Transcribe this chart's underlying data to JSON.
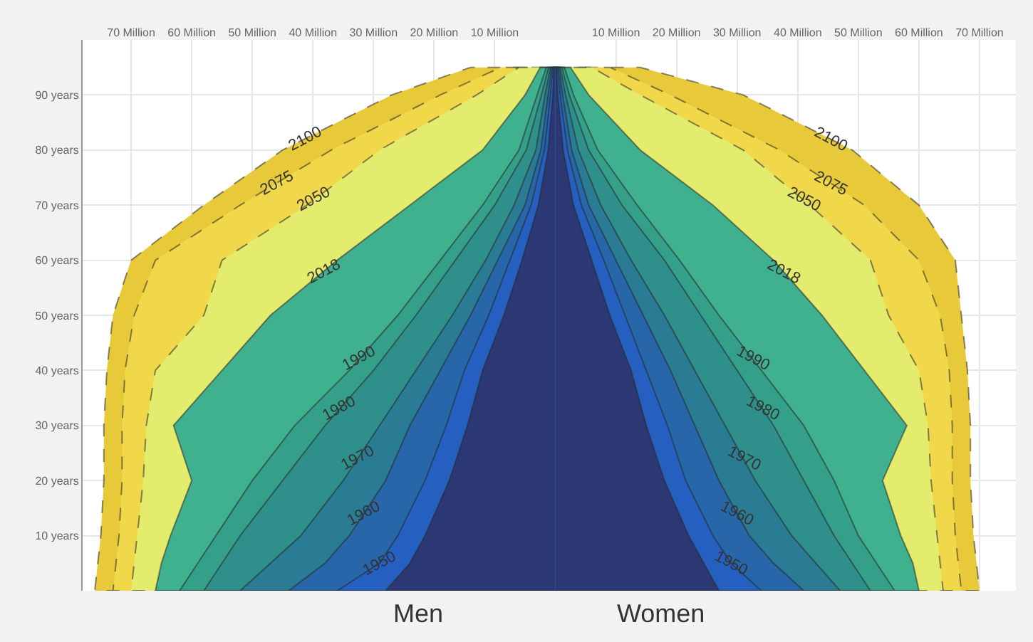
{
  "chart_data": {
    "type": "area",
    "orientation": "horizontal",
    "grid": true,
    "xlim": [
      -78,
      76
    ],
    "xticks": [
      {
        "value": -70,
        "label": "70 Million"
      },
      {
        "value": -60,
        "label": "60 Million"
      },
      {
        "value": -50,
        "label": "50 Million"
      },
      {
        "value": -40,
        "label": "40 Million"
      },
      {
        "value": -30,
        "label": "30 Million"
      },
      {
        "value": -20,
        "label": "20 Million"
      },
      {
        "value": -10,
        "label": "10 Million"
      },
      {
        "value": 10,
        "label": "10 Million"
      },
      {
        "value": 20,
        "label": "20 Million"
      },
      {
        "value": 30,
        "label": "30 Million"
      },
      {
        "value": 40,
        "label": "40 Million"
      },
      {
        "value": 50,
        "label": "50 Million"
      },
      {
        "value": 60,
        "label": "60 Million"
      },
      {
        "value": 70,
        "label": "70 Million"
      }
    ],
    "ylim": [
      0,
      100
    ],
    "yticks": [
      {
        "value": 10,
        "label": "10 years"
      },
      {
        "value": 20,
        "label": "20 years"
      },
      {
        "value": 30,
        "label": "30 years"
      },
      {
        "value": 40,
        "label": "40 years"
      },
      {
        "value": 50,
        "label": "50 years"
      },
      {
        "value": 60,
        "label": "60 years"
      },
      {
        "value": 70,
        "label": "70 years"
      },
      {
        "value": 80,
        "label": "80 years"
      },
      {
        "value": 90,
        "label": "90 years"
      }
    ],
    "annotations": [
      "Men",
      "Women"
    ],
    "series": [
      {
        "name": "2100",
        "color": "#e8c93a",
        "line_style": "dashed",
        "x": [
          0,
          5,
          10,
          20,
          30,
          40,
          50,
          60,
          70,
          80,
          90,
          95
        ],
        "values": [
          -76,
          -75.5,
          -75,
          -74.5,
          -74.5,
          -74,
          -73,
          -70,
          -58,
          -45,
          -27,
          -14
        ]
      },
      {
        "name": "2075",
        "color": "#f0d84a",
        "line_style": "dashed",
        "x": [
          0,
          5,
          10,
          20,
          30,
          40,
          50,
          60,
          70,
          80,
          90,
          95
        ],
        "values": [
          -73,
          -72.5,
          -72,
          -71.5,
          -71.5,
          -71,
          -69.5,
          -66,
          -52,
          -37,
          -19,
          -9
        ]
      },
      {
        "name": "2050",
        "color": "#e3ec6c",
        "line_style": "dashed",
        "x": [
          0,
          5,
          10,
          20,
          30,
          40,
          50,
          60,
          70,
          80,
          90,
          95
        ],
        "values": [
          -70,
          -69.5,
          -69,
          -68,
          -67.5,
          -66,
          -58,
          -55,
          -41,
          -29,
          -13,
          -6
        ]
      },
      {
        "name": "2018",
        "color": "#3fb18f",
        "line_style": "solid",
        "x": [
          0,
          5,
          10,
          20,
          30,
          40,
          50,
          60,
          70,
          80,
          90,
          95
        ],
        "values": [
          -66,
          -65,
          -63.5,
          -60,
          -63,
          -55,
          -47,
          -36,
          -24,
          -12,
          -5,
          -2.5
        ]
      },
      {
        "name": "1990",
        "color": "#34a08a",
        "line_style": "solid",
        "x": [
          0,
          5,
          10,
          20,
          30,
          40,
          50,
          60,
          70,
          80,
          90,
          95
        ],
        "values": [
          -62,
          -59,
          -56,
          -50,
          -43,
          -34,
          -26,
          -19,
          -12,
          -6,
          -3,
          -1.5
        ]
      },
      {
        "name": "1980",
        "color": "#2e8f8b",
        "line_style": "solid",
        "x": [
          0,
          5,
          10,
          20,
          30,
          40,
          50,
          60,
          70,
          80,
          90,
          95
        ],
        "values": [
          -58,
          -55,
          -52,
          -45,
          -38,
          -30,
          -23,
          -16.5,
          -10,
          -4.8,
          -2.3,
          -1.1
        ]
      },
      {
        "name": "1970",
        "color": "#2a7b94",
        "line_style": "solid",
        "x": [
          0,
          5,
          10,
          20,
          30,
          40,
          50,
          60,
          70,
          80,
          90,
          95
        ],
        "values": [
          -52,
          -47,
          -42,
          -35,
          -29,
          -23,
          -17,
          -11.5,
          -6.8,
          -3.2,
          -1.7,
          -0.8
        ]
      },
      {
        "name": "1960",
        "color": "#2766a8",
        "line_style": "solid",
        "x": [
          0,
          5,
          10,
          20,
          30,
          40,
          50,
          60,
          70,
          80,
          90,
          95
        ],
        "values": [
          -44,
          -38,
          -34,
          -28,
          -24,
          -19,
          -14,
          -9.5,
          -5,
          -2.4,
          -1.2,
          -0.6
        ]
      },
      {
        "name": "1950",
        "color": "#2560c0",
        "line_style": "solid",
        "x": [
          0,
          5,
          10,
          20,
          30,
          40,
          50,
          60,
          70,
          80,
          90,
          95
        ],
        "values": [
          -36,
          -29,
          -26,
          -21.5,
          -18,
          -15,
          -11,
          -7.5,
          -4,
          -1.8,
          -0.8,
          -0.4
        ]
      },
      {
        "color": "#2c3873",
        "line_style": "solid",
        "x": [
          0,
          5,
          10,
          20,
          30,
          40,
          50,
          60,
          70,
          80,
          90,
          95
        ],
        "values": [
          -28,
          -24,
          -21.5,
          -17.5,
          -14.5,
          -12,
          -8.5,
          -5.5,
          -2.8,
          -1.2,
          -0.4,
          -0.2
        ]
      },
      {
        "name": "2100",
        "color": "#e8c93a",
        "line_style": "dashed",
        "x": [
          0,
          5,
          10,
          20,
          30,
          40,
          50,
          60,
          70,
          80,
          90,
          95
        ],
        "values": [
          70,
          69.5,
          69,
          68.5,
          68.5,
          68,
          67,
          66,
          60,
          49,
          31,
          14
        ]
      },
      {
        "name": "2075",
        "color": "#f0d84a",
        "line_style": "dashed",
        "x": [
          0,
          5,
          10,
          20,
          30,
          40,
          50,
          60,
          70,
          80,
          90,
          95
        ],
        "values": [
          67,
          66.5,
          66,
          65.5,
          65.5,
          65,
          63.5,
          60,
          51,
          37,
          19,
          9
        ]
      },
      {
        "name": "2050",
        "color": "#e3ec6c",
        "line_style": "dashed",
        "x": [
          0,
          5,
          10,
          20,
          30,
          40,
          50,
          60,
          70,
          80,
          90,
          95
        ],
        "values": [
          64,
          63.5,
          63,
          62,
          61.5,
          60,
          55,
          52,
          42,
          31,
          14,
          6
        ]
      },
      {
        "name": "2018",
        "color": "#3fb18f",
        "line_style": "solid",
        "x": [
          0,
          5,
          10,
          20,
          30,
          40,
          50,
          60,
          70,
          80,
          90,
          95
        ],
        "values": [
          60,
          59,
          57,
          54,
          58,
          51,
          44,
          36,
          26,
          14,
          5.5,
          2.5
        ]
      },
      {
        "name": "1990",
        "color": "#34a08a",
        "line_style": "solid",
        "x": [
          0,
          5,
          10,
          20,
          30,
          40,
          50,
          60,
          70,
          80,
          90,
          95
        ],
        "values": [
          56,
          53,
          50,
          46,
          41,
          34,
          27,
          20.5,
          13.5,
          7,
          3,
          1.5
        ]
      },
      {
        "name": "1980",
        "color": "#2e8f8b",
        "line_style": "solid",
        "x": [
          0,
          5,
          10,
          20,
          30,
          40,
          50,
          60,
          70,
          80,
          90,
          95
        ],
        "values": [
          52,
          49,
          46,
          41,
          36,
          30,
          24,
          18,
          11,
          5.5,
          2.3,
          1.1
        ]
      },
      {
        "name": "1970",
        "color": "#2a7b94",
        "line_style": "solid",
        "x": [
          0,
          5,
          10,
          20,
          30,
          40,
          50,
          60,
          70,
          80,
          90,
          95
        ],
        "values": [
          47,
          43,
          39,
          33,
          28,
          23,
          18,
          12.5,
          7.5,
          3.8,
          1.7,
          0.8
        ]
      },
      {
        "name": "1960",
        "color": "#2766a8",
        "line_style": "solid",
        "x": [
          0,
          5,
          10,
          20,
          30,
          40,
          50,
          60,
          70,
          80,
          90,
          95
        ],
        "values": [
          41,
          36,
          32,
          27,
          23,
          19,
          14.5,
          10,
          5.5,
          2.7,
          1.2,
          0.6
        ]
      },
      {
        "name": "1950",
        "color": "#2560c0",
        "line_style": "solid",
        "x": [
          0,
          5,
          10,
          20,
          30,
          40,
          50,
          60,
          70,
          80,
          90,
          95
        ],
        "values": [
          34,
          29,
          26,
          21.5,
          18.5,
          15,
          11.5,
          8,
          4.3,
          2,
          0.8,
          0.4
        ]
      },
      {
        "color": "#2c3873",
        "line_style": "solid",
        "x": [
          0,
          5,
          10,
          20,
          30,
          40,
          50,
          60,
          70,
          80,
          90,
          95
        ],
        "values": [
          27,
          24.5,
          22,
          18,
          15,
          12.5,
          9,
          6,
          3,
          1.3,
          0.4,
          0.2
        ]
      }
    ]
  }
}
